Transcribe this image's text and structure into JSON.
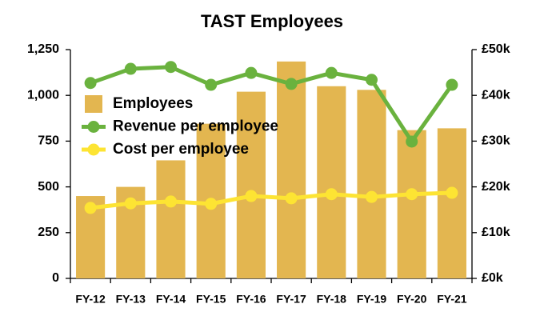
{
  "chart_data": {
    "type": "bar",
    "title": "TAST Employees",
    "categories": [
      "FY-12",
      "FY-13",
      "FY-14",
      "FY-15",
      "FY-16",
      "FY-17",
      "FY-18",
      "FY-19",
      "FY-20",
      "FY-21"
    ],
    "series": [
      {
        "name": "Employees",
        "type": "bar",
        "color": "#e3b650",
        "values": [
          450,
          500,
          645,
          845,
          1020,
          1185,
          1050,
          1030,
          810,
          820
        ]
      },
      {
        "name": "Revenue per employee",
        "type": "line",
        "axis": "y2",
        "color": "#6ab23e",
        "values": [
          42700,
          45800,
          46200,
          42300,
          44900,
          42500,
          44900,
          43400,
          29900,
          42300
        ]
      },
      {
        "name": "Cost per employee",
        "type": "line",
        "axis": "y2",
        "color": "#fde433",
        "values": [
          15400,
          16400,
          16800,
          16300,
          18000,
          17500,
          18400,
          17800,
          18400,
          18700
        ]
      }
    ],
    "ylim": [
      0,
      1250
    ],
    "yticks": [
      0,
      250,
      500,
      750,
      {
        "value": 1000,
        "label": "1,000"
      },
      {
        "value": 1250,
        "label": "1,250"
      }
    ],
    "y2lim": [
      0,
      50000
    ],
    "y2ticks": [
      {
        "value": 0,
        "label": "£0k"
      },
      {
        "value": 10000,
        "label": "£10k"
      },
      {
        "value": 20000,
        "label": "£20k"
      },
      {
        "value": 30000,
        "label": "£30k"
      },
      {
        "value": 40000,
        "label": "£40k"
      },
      {
        "value": 50000,
        "label": "£50k"
      }
    ],
    "legend": "upper-left",
    "grid": false
  }
}
